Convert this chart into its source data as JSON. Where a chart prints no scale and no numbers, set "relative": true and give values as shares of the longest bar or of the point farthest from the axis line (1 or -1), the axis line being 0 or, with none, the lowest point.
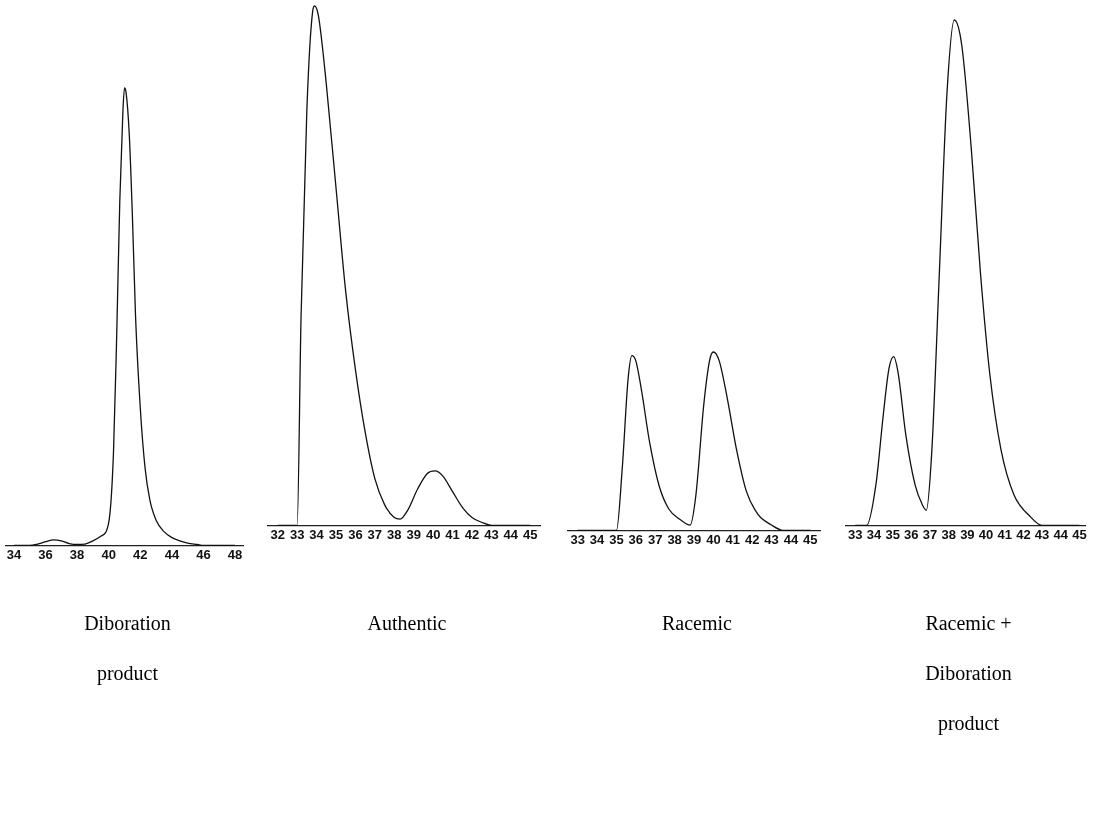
{
  "chart_data": [
    {
      "type": "line",
      "xlabel": "Diboration product",
      "relative": true,
      "grid": false,
      "legend": false,
      "marker": "none",
      "line_style": "solid",
      "xlim": [
        33.5,
        48.5
      ],
      "xticks": [
        34,
        36,
        38,
        40,
        42,
        44,
        46,
        48
      ],
      "series": [
        {
          "color": "#111111",
          "x": [
            34,
            35,
            35.5,
            36,
            36.5,
            37,
            37.5,
            38,
            38.5,
            39,
            39.5,
            40,
            40.3,
            40.5,
            40.7,
            40.9,
            41,
            41.1,
            41.3,
            41.5,
            41.7,
            42,
            42.3,
            42.6,
            43,
            43.5,
            44,
            44.5,
            45,
            45.6,
            46,
            48
          ],
          "values": [
            0,
            0,
            0.003,
            0.008,
            0.012,
            0.01,
            0.004,
            0.002,
            0.003,
            0.01,
            0.02,
            0.05,
            0.2,
            0.45,
            0.75,
            0.95,
            1,
            0.99,
            0.9,
            0.72,
            0.5,
            0.3,
            0.17,
            0.1,
            0.055,
            0.03,
            0.017,
            0.01,
            0.005,
            0.002,
            0,
            0
          ]
        }
      ]
    },
    {
      "type": "line",
      "xlabel": "Authentic",
      "relative": true,
      "grid": false,
      "legend": false,
      "marker": "none",
      "line_style": "solid",
      "xlim": [
        31.5,
        45.5
      ],
      "xticks": [
        32,
        33,
        34,
        35,
        36,
        37,
        38,
        39,
        40,
        41,
        42,
        43,
        44,
        45
      ],
      "series": [
        {
          "color": "#111111",
          "x": [
            32,
            33,
            33.2,
            33.5,
            33.8,
            33.9,
            34.1,
            34.5,
            35,
            35.5,
            36,
            36.5,
            37,
            37.5,
            38,
            38.3,
            38.7,
            39.2,
            39.7,
            40.1,
            40.5,
            41,
            41.5,
            42,
            42.5,
            43,
            45
          ],
          "values": [
            0,
            0,
            0.4,
            0.8,
            0.99,
            1,
            0.98,
            0.85,
            0.65,
            0.45,
            0.3,
            0.18,
            0.09,
            0.04,
            0.015,
            0.012,
            0.03,
            0.07,
            0.1,
            0.105,
            0.095,
            0.065,
            0.035,
            0.015,
            0.006,
            0,
            0
          ]
        }
      ]
    },
    {
      "type": "line",
      "xlabel": "Racemic",
      "relative": true,
      "grid": false,
      "legend": false,
      "marker": "none",
      "line_style": "solid",
      "xlim": [
        32.5,
        45.5
      ],
      "xticks": [
        33,
        34,
        35,
        36,
        37,
        38,
        39,
        40,
        41,
        42,
        43,
        44,
        45
      ],
      "series": [
        {
          "color": "#111111",
          "x": [
            33,
            35,
            35.3,
            35.6,
            35.8,
            36,
            36.3,
            36.7,
            37.2,
            37.7,
            38.3,
            38.8,
            39.1,
            39.5,
            39.8,
            40,
            40.3,
            40.7,
            41.2,
            41.7,
            42.3,
            43,
            43.6,
            45
          ],
          "values": [
            0,
            0,
            0.35,
            0.85,
            0.98,
            0.95,
            0.78,
            0.5,
            0.25,
            0.12,
            0.06,
            0.03,
            0.2,
            0.7,
            0.95,
            1,
            0.95,
            0.75,
            0.45,
            0.22,
            0.09,
            0.03,
            0,
            0
          ]
        }
      ]
    },
    {
      "type": "line",
      "xlabel": "Racemic + Diboration product",
      "relative": true,
      "grid": false,
      "legend": false,
      "marker": "none",
      "line_style": "solid",
      "xlim": [
        32.5,
        45.3
      ],
      "xticks": [
        33,
        34,
        35,
        36,
        37,
        38,
        39,
        40,
        41,
        42,
        43,
        44,
        45
      ],
      "series": [
        {
          "color": "#111111",
          "x": [
            33,
            33.6,
            34.1,
            34.5,
            34.8,
            35.05,
            35.3,
            35.7,
            36.2,
            36.6,
            36.8,
            37.1,
            37.5,
            37.9,
            38.3,
            38.7,
            39.2,
            39.7,
            40.2,
            40.8,
            41.5,
            42.3,
            43,
            45
          ],
          "values": [
            0,
            0,
            0.08,
            0.22,
            0.31,
            0.334,
            0.3,
            0.18,
            0.08,
            0.04,
            0.03,
            0.15,
            0.5,
            0.85,
            1,
            0.95,
            0.75,
            0.5,
            0.3,
            0.15,
            0.06,
            0.02,
            0,
            0
          ]
        }
      ]
    }
  ]
}
